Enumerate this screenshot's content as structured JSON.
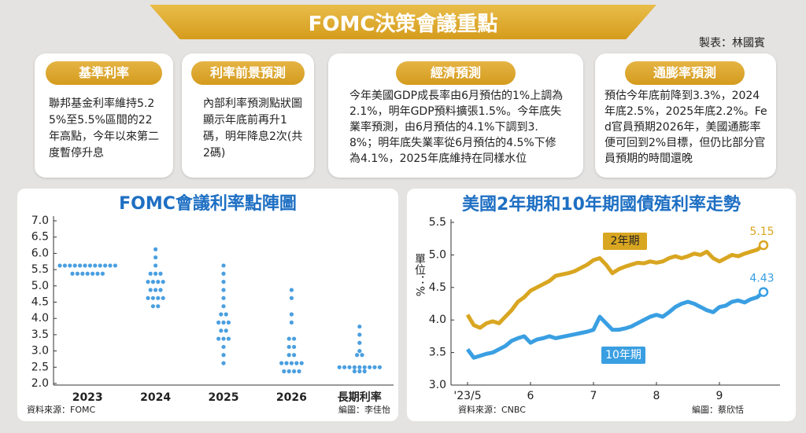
{
  "header": {
    "title": "FOMC決策會議重點",
    "credit": "製表：林國賓"
  },
  "cards": [
    {
      "title": "基準利率",
      "body": "聯邦基金利率維持5.25%至5.5%區間的22年高點，今年以來第二度暫停升息"
    },
    {
      "title": "利率前景預測",
      "body": "內部利率預測點狀圖顯示年底前再升1碼，明年降息2次(共2碼)"
    },
    {
      "title": "經濟預測",
      "body": "今年美國GDP成長率由6月預估的1%上調為2.1%，明年GDP預料擴張1.5%。今年底失業率預測，由6月預估的4.1%下調到3.8%；明年底失業率從6月預估的4.5%下修為4.1%，2025年底維持在同樣水位"
    },
    {
      "title": "通膨率預測",
      "body": "預估今年底前降到3.3%，2024年底2.5%，2025年底2.2%。Fed官員預期2026年，美國通膨率便可回到2%目標，但仍比部分官員預期的時間還晚"
    }
  ],
  "chart_data": [
    {
      "type": "dot",
      "title": "FOMC會議利率點陣圖",
      "categories": [
        "2023",
        "2024",
        "2025",
        "2026",
        "長期利率"
      ],
      "values": [
        [
          5.625,
          5.625,
          5.625,
          5.625,
          5.625,
          5.625,
          5.625,
          5.625,
          5.625,
          5.625,
          5.625,
          5.625,
          5.375,
          5.375,
          5.375,
          5.375,
          5.375,
          5.375,
          5.375
        ],
        [
          6.125,
          5.875,
          5.625,
          5.375,
          5.375,
          5.375,
          5.125,
          5.125,
          5.125,
          5.125,
          4.875,
          4.875,
          4.875,
          4.625,
          4.625,
          4.625,
          4.625,
          4.375,
          4.375
        ],
        [
          5.625,
          5.375,
          5.125,
          4.875,
          4.625,
          4.375,
          4.125,
          4.125,
          3.875,
          3.875,
          3.875,
          3.625,
          3.625,
          3.375,
          3.375,
          3.375,
          3.125,
          2.875,
          2.625
        ],
        [
          4.875,
          4.625,
          4.125,
          3.875,
          3.375,
          3.375,
          3.125,
          3.125,
          2.875,
          2.875,
          2.625,
          2.625,
          2.625,
          2.625,
          2.625,
          2.375,
          2.375,
          2.375,
          2.375
        ],
        [
          3.75,
          3.5,
          3.25,
          3.0,
          2.875,
          2.875,
          2.5,
          2.5,
          2.5,
          2.5,
          2.5,
          2.5,
          2.5,
          2.5,
          2.5,
          2.375,
          2.375,
          2.375
        ]
      ],
      "color": "#4a9fe0",
      "ylim": [
        2,
        7
      ],
      "yticks": [
        {
          "value": 2,
          "label": "2.0"
        },
        2.5,
        {
          "value": 3,
          "label": "3.0"
        },
        3.5,
        {
          "value": 4,
          "label": "4.0"
        },
        4.5,
        {
          "value": 5,
          "label": "5.0"
        },
        5.5,
        {
          "value": 6,
          "label": "6.0"
        },
        6.5,
        {
          "value": 7,
          "label": "7.0"
        }
      ],
      "source": "資料來源：FOMC",
      "credit": "編圖：李佳怡"
    },
    {
      "type": "line",
      "title": "美國2年期和10年期國債殖利率走勢",
      "ylabel": "單位：%",
      "categories": [
        "'23/5",
        null,
        null,
        null,
        null,
        null,
        null,
        null,
        null,
        null,
        "6",
        null,
        null,
        null,
        null,
        null,
        null,
        null,
        null,
        null,
        "7",
        null,
        null,
        null,
        null,
        null,
        null,
        null,
        null,
        null,
        "8",
        null,
        null,
        null,
        null,
        null,
        null,
        null,
        null,
        null,
        "9",
        null,
        null,
        null,
        null,
        null,
        null,
        null
      ],
      "series": [
        {
          "name": "2年期",
          "color": "#d9a621",
          "values": [
            4.08,
            3.92,
            3.88,
            3.95,
            3.98,
            3.95,
            4.05,
            4.15,
            4.28,
            4.35,
            4.45,
            4.5,
            4.55,
            4.6,
            4.68,
            4.7,
            4.72,
            4.75,
            4.8,
            4.85,
            4.92,
            4.95,
            4.85,
            4.72,
            4.78,
            4.82,
            4.85,
            4.88,
            4.87,
            4.9,
            4.88,
            4.9,
            4.95,
            4.98,
            4.95,
            4.98,
            5.02,
            5.0,
            5.05,
            4.95,
            4.9,
            4.95,
            5.0,
            4.98,
            5.02,
            5.05,
            5.08,
            5.15
          ]
        },
        {
          "name": "10年期",
          "color": "#3a9fe2",
          "values": [
            3.55,
            3.42,
            3.45,
            3.48,
            3.5,
            3.55,
            3.6,
            3.68,
            3.72,
            3.75,
            3.65,
            3.7,
            3.72,
            3.75,
            3.72,
            3.74,
            3.76,
            3.78,
            3.8,
            3.82,
            3.85,
            4.05,
            3.95,
            3.85,
            3.85,
            3.87,
            3.9,
            3.95,
            4.0,
            4.05,
            4.08,
            4.05,
            4.12,
            4.2,
            4.25,
            4.28,
            4.25,
            4.2,
            4.15,
            4.12,
            4.2,
            4.22,
            4.28,
            4.3,
            4.27,
            4.32,
            4.35,
            4.43
          ]
        }
      ],
      "ylim": [
        3,
        5.5
      ],
      "yticks": [
        {
          "value": 3,
          "label": "3.0"
        },
        3.5,
        {
          "value": 4,
          "label": "4.0"
        },
        4.5,
        {
          "value": 5,
          "label": "5.0"
        },
        5.5
      ],
      "source": "資料來源：CNBC",
      "credit": "編圖：蔡欣恬"
    }
  ]
}
